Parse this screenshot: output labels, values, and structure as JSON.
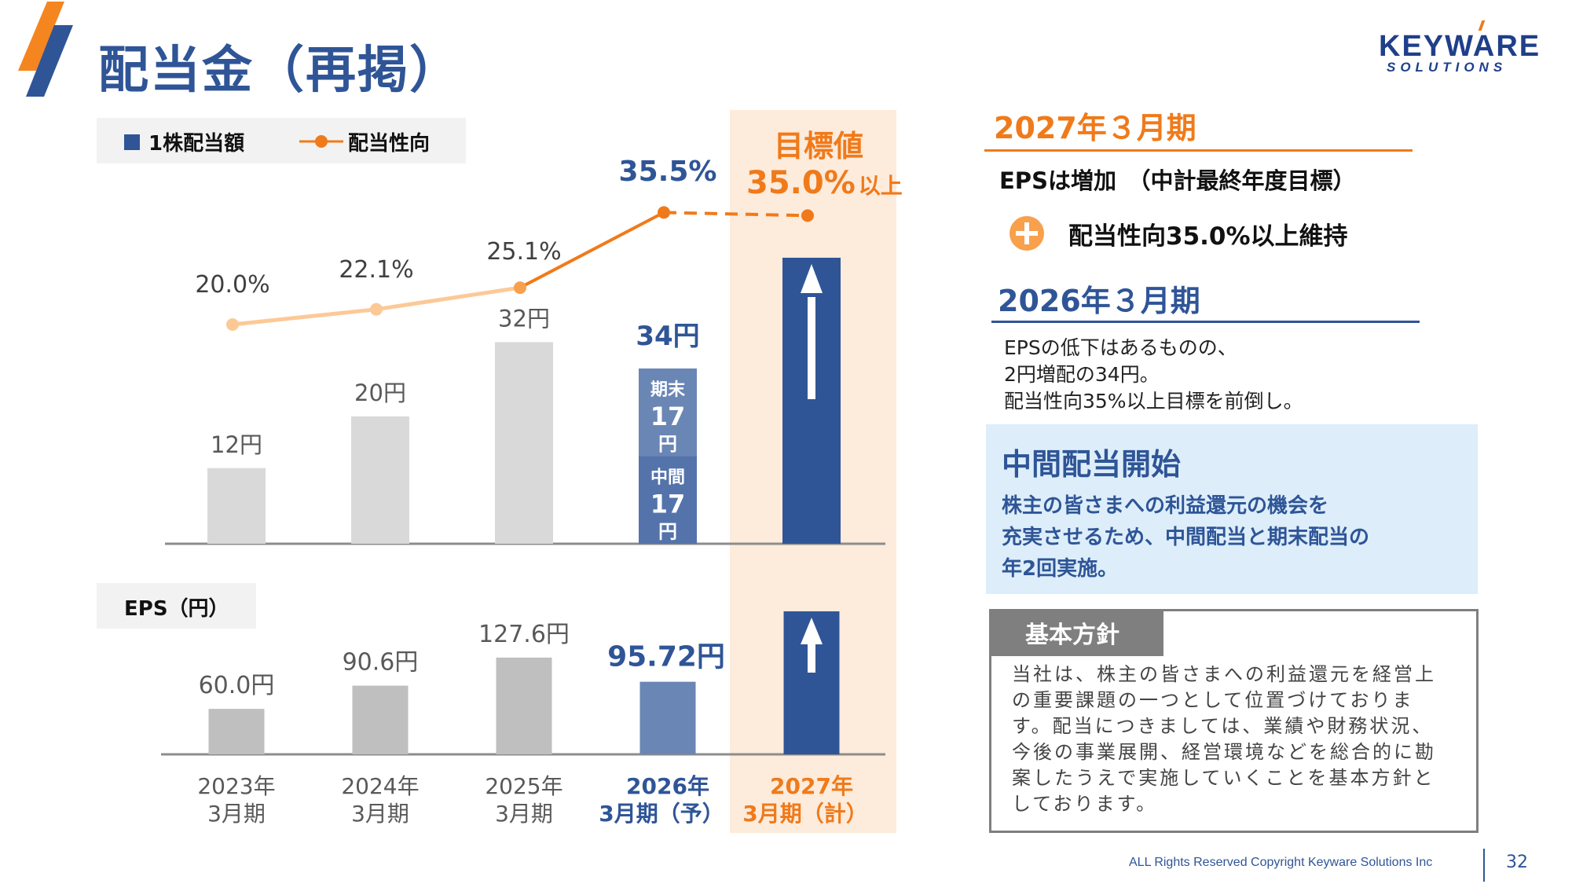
{
  "page": {
    "title": "配当金（再掲）",
    "logo_main": "KEYWARE",
    "logo_sub": "SOLUTIONS",
    "footer_copyright": "ALL Rights Reserved Copyright Keyware Solutions Inc",
    "page_number": "32"
  },
  "colors": {
    "brand_blue": "#2f5597",
    "accent_orange": "#f07a1a",
    "bar_gray_dividend": "#d9d9d9",
    "bar_gray_eps": "#bfbfbf",
    "forecast_blue": "#6a86b5",
    "interim_blue": "#5473ab",
    "target_bg": "#fdebdc",
    "line_past": "#fcc996",
    "line_recent": "#f07a1a"
  },
  "legend": {
    "dividend_label": "1株配当額",
    "payout_label": "配当性向"
  },
  "target_label": {
    "title": "目標値",
    "value": "35.0%",
    "suffix": "以上"
  },
  "chart_data": [
    {
      "type": "bar",
      "title": "1株配当額 / 配当性向",
      "categories": [
        "2023年3月期",
        "2024年3月期",
        "2025年3月期",
        "2026年3月期（予）",
        "2027年3月期（計）"
      ],
      "category_lines": [
        [
          "2023年",
          "3月期"
        ],
        [
          "2024年",
          "3月期"
        ],
        [
          "2025年",
          "3月期"
        ],
        [
          "2026年",
          "3月期（予）"
        ],
        [
          "2027年",
          "3月期（計）"
        ]
      ],
      "series": [
        {
          "name": "1株配当額",
          "unit": "円",
          "values": [
            12,
            20,
            32,
            34,
            null
          ],
          "labels": [
            "12円",
            "20円",
            "32円",
            "34円",
            ""
          ],
          "stack_2026": [
            {
              "name": "中間",
              "value": 17,
              "label": "17",
              "unit": "円"
            },
            {
              "name": "期末",
              "value": 17,
              "label": "17",
              "unit": "円"
            }
          ],
          "target_2027": "increase (arrow)"
        },
        {
          "name": "配当性向",
          "type": "line",
          "unit": "%",
          "values": [
            20.0,
            22.1,
            25.1,
            35.5,
            35.0
          ],
          "labels": [
            "20.0%",
            "22.1%",
            "25.1%",
            "35.5%",
            "35.0%以上"
          ]
        }
      ],
      "ylim": [
        0,
        40
      ],
      "legend": "top-left",
      "grid": false
    },
    {
      "type": "bar",
      "title": "EPS（円）",
      "categories": [
        "2023年3月期",
        "2024年3月期",
        "2025年3月期",
        "2026年3月期（予）",
        "2027年3月期（計）"
      ],
      "series": [
        {
          "name": "EPS",
          "unit": "円",
          "values": [
            60.0,
            90.6,
            127.6,
            95.72,
            null
          ],
          "labels": [
            "60.0円",
            "90.6円",
            "127.6円",
            "95.72円",
            ""
          ],
          "target_2027": "increase (arrow)"
        }
      ],
      "ylim": [
        0,
        160
      ],
      "grid": false
    }
  ],
  "right_panel": {
    "fy2027": {
      "heading": "2027年３月期",
      "eps_line": "EPSは増加　（中計最終年度目標）",
      "payout_line": "配当性向35.0%以上維持"
    },
    "fy2026": {
      "heading": "2026年３月期",
      "body_lines": [
        "EPSの低下はあるものの、",
        "2円増配の34円。",
        "配当性向35%以上目標を前倒し。"
      ]
    },
    "interim": {
      "title": "中間配当開始",
      "body_lines": [
        "株主の皆さまへの利益還元の機会を",
        "充実させるため、中間配当と期末配当の",
        "年2回実施。"
      ]
    },
    "policy": {
      "tab_label": "基本方針",
      "body_lines": [
        "当社は、株主の皆さまへの利益還元を経営上",
        "の重要課題の一つとして位置づけておりま",
        "す。配当につきましては、業績や財務状況、",
        "今後の事業展開、経営環境などを総合的に勘",
        "案したうえで実施していくことを基本方針と",
        "しております。"
      ]
    }
  }
}
